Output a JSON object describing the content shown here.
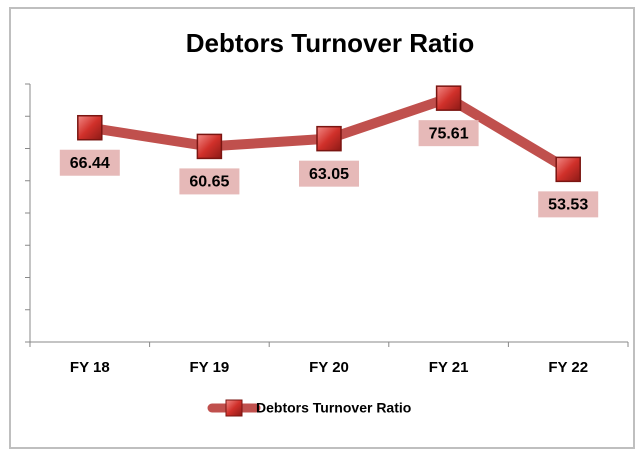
{
  "chart_data": {
    "type": "line",
    "title": "Debtors Turnover Ratio",
    "categories": [
      "FY 18",
      "FY 19",
      "FY 20",
      "FY 21",
      "FY 22"
    ],
    "series": [
      {
        "name": "Debtors Turnover Ratio",
        "color": "#c0504d",
        "values": [
          66.44,
          60.65,
          63.05,
          75.61,
          53.53
        ]
      }
    ],
    "ylim": [
      0,
      80
    ],
    "yticks": [
      0,
      10,
      20,
      30,
      40,
      50,
      60,
      70,
      80
    ],
    "legend": "bottom"
  }
}
